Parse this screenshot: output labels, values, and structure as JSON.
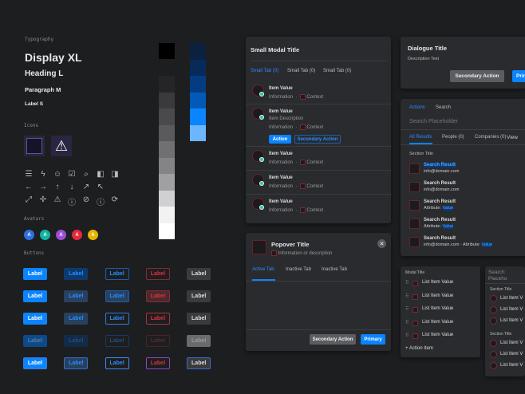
{
  "typography": {
    "section": "Typography",
    "display": "Display XL",
    "heading": "Heading L",
    "paragraph": "Paragraph M",
    "label": "Label S"
  },
  "icons": {
    "section": "Icons",
    "large": [
      "grid-icon",
      "warning-icon"
    ],
    "rows": [
      [
        "list-icon",
        "bolt-icon",
        "user-icon",
        "checkbox-icon",
        "search-box-icon",
        "collapse-left-icon",
        "collapse-right-icon"
      ],
      [
        "arrow-left-icon",
        "arrow-right-icon",
        "arrow-up-icon",
        "arrow-down-icon",
        "arrow-up-right-icon",
        "arrow-up-left-icon"
      ],
      [
        "expand-icon",
        "collapse-icon",
        "warning-icon",
        "info-icon",
        "blocked-icon",
        "info-icon",
        "refresh-icon"
      ]
    ]
  },
  "avatars": {
    "section": "Avatars",
    "items": [
      {
        "letter": "A",
        "color": "#2f6fe0"
      },
      {
        "letter": "A",
        "color": "#12b3a0"
      },
      {
        "letter": "A",
        "color": "#9b4fd6"
      },
      {
        "letter": "A",
        "color": "#e6283c"
      },
      {
        "letter": "A",
        "color": "#e8b400"
      }
    ]
  },
  "buttons": {
    "section": "Buttons",
    "label": "Label"
  },
  "palette": {
    "grays": [
      "#000000",
      "#252527",
      "#3a3a3c",
      "#4a4a4c",
      "#5a5a5c",
      "#707072",
      "#848486",
      "#a0a0a2",
      "#d0d0d2",
      "#f2f2f2",
      "#ffffff"
    ],
    "blues": [
      "#0c2140",
      "#072a5a",
      "#033c80",
      "#0259b8",
      "#0a84ff",
      "#6cb6ff"
    ]
  },
  "small_modal": {
    "title": "Small Modal Title",
    "tabs": [
      "Small Tab (0)",
      "Small Tab (0)",
      "Small Tab (0)"
    ],
    "items": [
      {
        "value": "Item Value",
        "info": "Information",
        "context": "Context"
      },
      {
        "value": "Item Value",
        "description": "Item Description",
        "info": "Information",
        "context": "Context",
        "action": "Action",
        "secondary": "Secondary Action"
      },
      {
        "value": "Item Value",
        "info": "Information",
        "context": "Context"
      },
      {
        "value": "Item Value",
        "info": "Information",
        "context": "Context"
      },
      {
        "value": "Item Value",
        "info": "Information",
        "context": "Context"
      }
    ]
  },
  "popover": {
    "title": "Popover Title",
    "description": "Information or description",
    "tabs": [
      "Active Tab",
      "Inactive Tab",
      "Inactive Tab"
    ],
    "secondary": "Secondary Action",
    "primary": "Primary"
  },
  "dialogue": {
    "title": "Dialogue Title",
    "description": "Description Text",
    "secondary": "Secondary Action",
    "primary": "Primary"
  },
  "search": {
    "top_tabs": [
      "Actions",
      "Search"
    ],
    "placeholder": "Search Placeholder",
    "tabs": [
      "All Results",
      "People (0)",
      "Companies (0)",
      "View"
    ],
    "section": "Section Title",
    "results": [
      {
        "title": "Search Result",
        "sub": "info@domain.com"
      },
      {
        "title": "Search Result",
        "sub": "info@domain.com"
      },
      {
        "title": "Search Result",
        "attr": "Attribute:",
        "value": "Value"
      },
      {
        "title": "Search Result",
        "attr": "Attribute:",
        "value": "Value"
      },
      {
        "title": "Search Result",
        "sub": "info@domain.com",
        "attr": "Attribute:",
        "value": "Value"
      }
    ]
  },
  "modal_list": {
    "title": "Modal Title",
    "items": [
      "List Item Value",
      "List Item Value",
      "List Item Value",
      "List Item Value",
      "List Item Value"
    ],
    "action": "Action Item"
  },
  "search_list": {
    "placeholder": "Search Placeho",
    "sections": [
      {
        "title": "Section Title",
        "items": [
          "List Item V",
          "List Item V",
          "List Item V"
        ]
      },
      {
        "title": "Section Title",
        "items": [
          "List Item V",
          "List Item V",
          "List Item V"
        ]
      }
    ]
  }
}
